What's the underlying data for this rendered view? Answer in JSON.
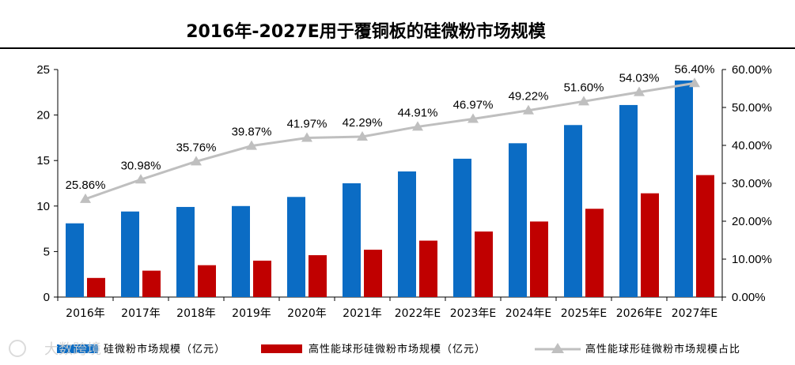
{
  "chart_data": {
    "type": "bar",
    "title": "2016年-2027E用于覆铜板的硅微粉市场规模",
    "categories": [
      "2016年",
      "2017年",
      "2018年",
      "2019年",
      "2020年",
      "2021年",
      "2022年E",
      "2023年E",
      "2024年E",
      "2025年E",
      "2026年E",
      "2027年E"
    ],
    "series": [
      {
        "name": "硅微粉市场规模（亿元）",
        "kind": "bar",
        "axis": "left",
        "color": "#0B6CC4",
        "values": [
          8.1,
          9.4,
          9.9,
          10.0,
          11.0,
          12.5,
          13.8,
          15.2,
          16.9,
          18.9,
          21.1,
          23.8
        ]
      },
      {
        "name": "高性能球形硅微粉市场规模（亿元）",
        "kind": "bar",
        "axis": "left",
        "color": "#C00000",
        "values": [
          2.1,
          2.9,
          3.5,
          4.0,
          4.6,
          5.2,
          6.2,
          7.2,
          8.3,
          9.7,
          11.4,
          13.4
        ]
      },
      {
        "name": "高性能球形硅微粉市场规模占比",
        "kind": "line",
        "axis": "right",
        "color": "#BFBFBF",
        "values": [
          25.86,
          30.98,
          35.76,
          39.87,
          41.97,
          42.29,
          44.91,
          46.97,
          49.22,
          51.6,
          54.03,
          56.4
        ],
        "labels": [
          "25.86%",
          "30.98%",
          "35.76%",
          "39.87%",
          "41.97%",
          "42.29%",
          "44.91%",
          "46.97%",
          "49.22%",
          "51.60%",
          "54.03%",
          "56.40%"
        ]
      }
    ],
    "ylim_left": [
      0,
      25
    ],
    "yticks_left": [
      "0",
      "5",
      "10",
      "15",
      "20",
      "25"
    ],
    "ylim_right": [
      0,
      60
    ],
    "yticks_right": [
      "0.00%",
      "10.00%",
      "20.00%",
      "30.00%",
      "40.00%",
      "50.00%",
      "60.00%"
    ],
    "grid": false,
    "legend_position": "bottom"
  },
  "watermark": "大数跨境"
}
